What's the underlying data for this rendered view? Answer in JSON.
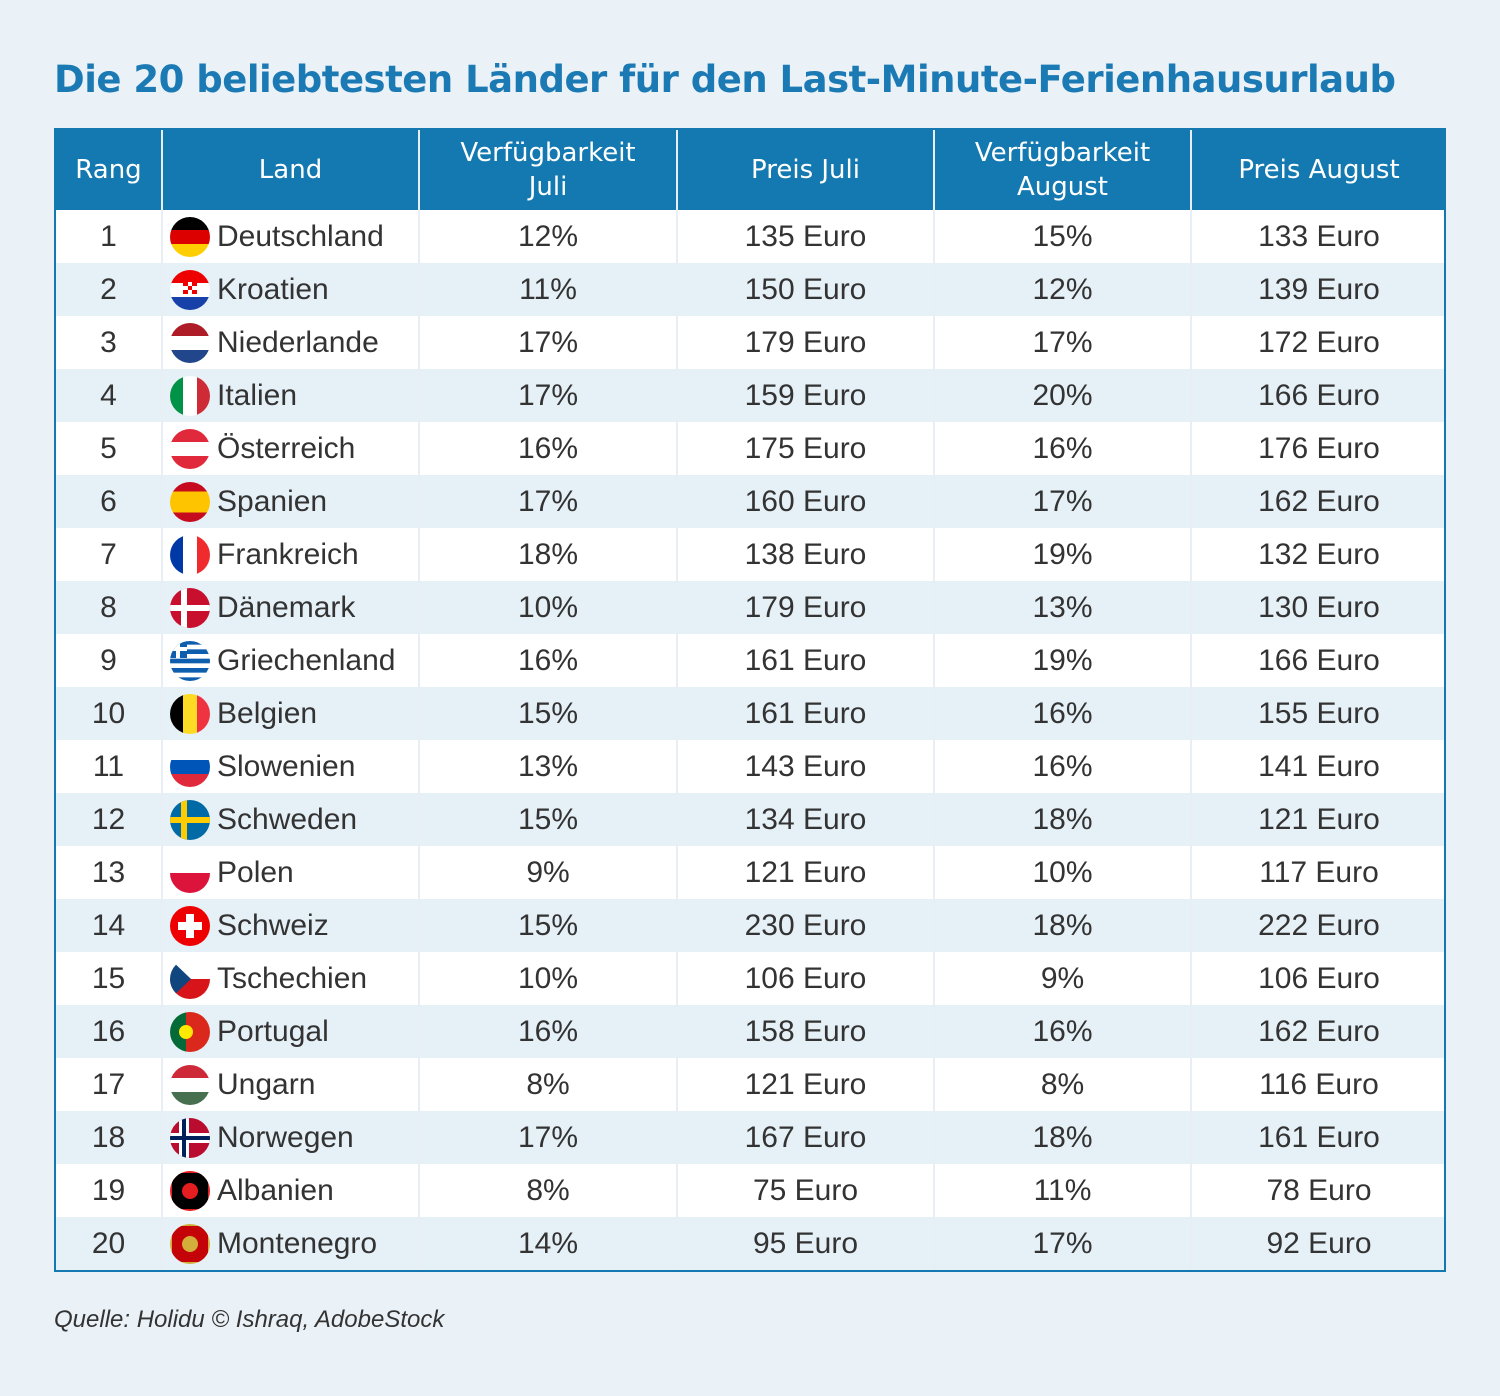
{
  "header": {
    "title": "Die 20 beliebtesten Länder für den Last-Minute-Ferienhausurlaub"
  },
  "table": {
    "headers": [
      "Rang",
      "Land",
      "Verfügbarkeit Juli",
      "Preis Juli",
      "Verfügbarkeit August",
      "Preis August"
    ],
    "rows": [
      [
        "1",
        "Deutschland",
        "12%",
        "135 Euro",
        "15%",
        "133 Euro"
      ],
      [
        "2",
        "Kroatien",
        "11%",
        "150 Euro",
        "12%",
        "139 Euro"
      ],
      [
        "3",
        "Niederlande",
        "17%",
        "179 Euro",
        "17%",
        "172 Euro"
      ],
      [
        "4",
        "Italien",
        "17%",
        "159 Euro",
        "20%",
        "166 Euro"
      ],
      [
        "5",
        "Österreich",
        "16%",
        "175 Euro",
        "16%",
        "176 Euro"
      ],
      [
        "6",
        "Spanien",
        "17%",
        "160 Euro",
        "17%",
        "162 Euro"
      ],
      [
        "7",
        "Frankreich",
        "18%",
        "138 Euro",
        "19%",
        "132 Euro"
      ],
      [
        "8",
        "Dänemark",
        "10%",
        "179 Euro",
        "13%",
        "130 Euro"
      ],
      [
        "9",
        "Griechenland",
        "16%",
        "161 Euro",
        "19%",
        "166 Euro"
      ],
      [
        "10",
        "Belgien",
        "15%",
        "161 Euro",
        "16%",
        "155 Euro"
      ],
      [
        "11",
        "Slowenien",
        "13%",
        "143 Euro",
        "16%",
        "141 Euro"
      ],
      [
        "12",
        "Schweden",
        "15%",
        "134 Euro",
        "18%",
        "121 Euro"
      ],
      [
        "13",
        "Polen",
        "9%",
        "121 Euro",
        "10%",
        "117 Euro"
      ],
      [
        "14",
        "Schweiz",
        "15%",
        "230 Euro",
        "18%",
        "222 Euro"
      ],
      [
        "15",
        "Tschechien",
        "10%",
        "106 Euro",
        "9%",
        "106 Euro"
      ],
      [
        "16",
        "Portugal",
        "16%",
        "158 Euro",
        "16%",
        "162 Euro"
      ],
      [
        "17",
        "Ungarn",
        "8%",
        "121 Euro",
        "8%",
        "116 Euro"
      ],
      [
        "18",
        "Norwegen",
        "17%",
        "167 Euro",
        "18%",
        "161 Euro"
      ],
      [
        "19",
        "Albanien",
        "8%",
        "75 Euro",
        "11%",
        "78 Euro"
      ],
      [
        "20",
        "Montenegro",
        "14%",
        "95 Euro",
        "17%",
        "92 Euro"
      ]
    ]
  },
  "footer": {
    "source": "Quelle: Holidu © Ishraq, AdobeStock"
  }
}
